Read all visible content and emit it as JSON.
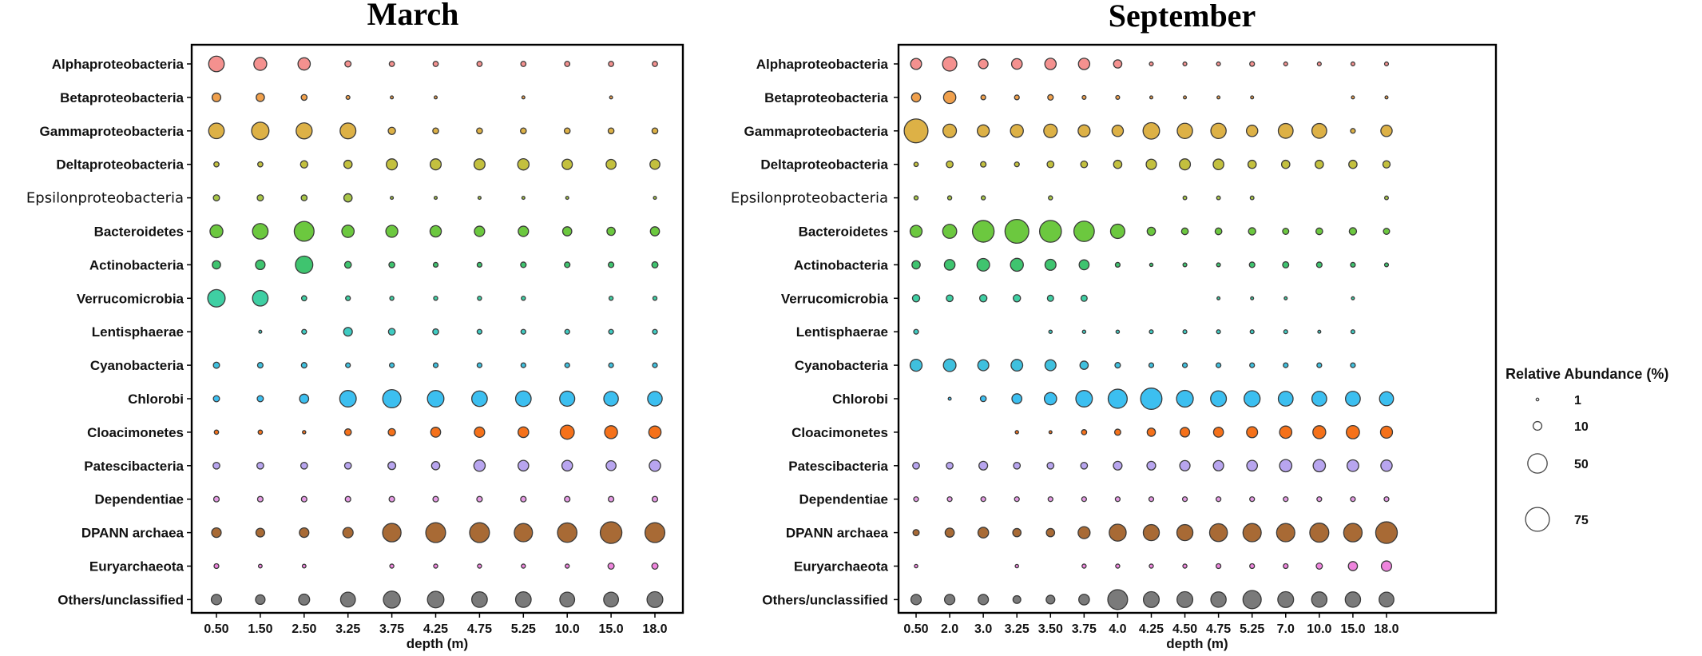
{
  "chart_data": {
    "type": "bubble",
    "taxa": [
      {
        "name": "Alphaproteobacteria",
        "color": "#f4918f"
      },
      {
        "name": "Betaproteobacteria",
        "color": "#f0a04c"
      },
      {
        "name": "Gammaproteobacteria",
        "color": "#ddb146"
      },
      {
        "name": "Deltaproteobacteria",
        "color": "#c3c03e"
      },
      {
        "name": "Epsilonproteobacteria",
        "color": "#a8c547"
      },
      {
        "name": "Bacteroidetes",
        "color": "#6cc83f"
      },
      {
        "name": "Actinobacteria",
        "color": "#3fc46f"
      },
      {
        "name": "Verrucomicrobia",
        "color": "#3fcfa3"
      },
      {
        "name": "Lentisphaerae",
        "color": "#3fcbc2"
      },
      {
        "name": "Cyanobacteria",
        "color": "#3fc0de"
      },
      {
        "name": "Chlorobi",
        "color": "#3cbff0"
      },
      {
        "name": "Cloacimonetes",
        "color": "#f5711a"
      },
      {
        "name": "Patescibacteria",
        "color": "#b8a5ef"
      },
      {
        "name": "Dependentiae",
        "color": "#e59be4"
      },
      {
        "name": "DPANN archaea",
        "color": "#a86a35"
      },
      {
        "name": "Euryarchaeota",
        "color": "#ee84dd"
      },
      {
        "name": "Others/unclassified",
        "color": "#7a7a7a"
      }
    ],
    "x_label": "depth (m)",
    "legend": {
      "title": "Relative Abundance (%)",
      "sizes": [
        1,
        10,
        50,
        75
      ],
      "labels": [
        "1",
        "10",
        "50",
        "75"
      ]
    },
    "panels": [
      {
        "title": "March",
        "depths": [
          "0.50",
          "1.50",
          "2.50",
          "3.25",
          "3.75",
          "4.25",
          "4.75",
          "5.25",
          "10.0",
          "15.0",
          "18.0"
        ],
        "values": [
          [
            32,
            22,
            20,
            5,
            3.5,
            3.5,
            3.5,
            3.5,
            3.5,
            3.5,
            3.5
          ],
          [
            10,
            9,
            4.5,
            2,
            1.2,
            1.2,
            0,
            1.2,
            0,
            1.2,
            0
          ],
          [
            32,
            40,
            34,
            33,
            7,
            4.5,
            4.5,
            4.5,
            4.5,
            4.5,
            4.5
          ],
          [
            3.5,
            3.5,
            7,
            9,
            16,
            16,
            16,
            17,
            14,
            13,
            13
          ],
          [
            5,
            5,
            4.5,
            9,
            1.2,
            1.2,
            1.2,
            1.2,
            1.2,
            0,
            1.2
          ],
          [
            22,
            32,
            52,
            20,
            19,
            17,
            14,
            14,
            11,
            9,
            11
          ],
          [
            9,
            12,
            40,
            6,
            4.5,
            3,
            3,
            4,
            4,
            4,
            5
          ],
          [
            40,
            32,
            3.5,
            3,
            2.2,
            2.2,
            2.2,
            2.2,
            0,
            2.2,
            2.2
          ],
          [
            0,
            1.2,
            3,
            10,
            6,
            4.5,
            3,
            3,
            3,
            3,
            3
          ],
          [
            5,
            4,
            4,
            3,
            3,
            3,
            3,
            3,
            3,
            3,
            3
          ],
          [
            5,
            5,
            11,
            36,
            44,
            36,
            32,
            32,
            30,
            28,
            28
          ],
          [
            2.5,
            2.5,
            1.5,
            6,
            7,
            13,
            14,
            15,
            26,
            22,
            20
          ],
          [
            6,
            6,
            6,
            6,
            8,
            9,
            17,
            15,
            15,
            13,
            17
          ],
          [
            4,
            4,
            4,
            4,
            4,
            4,
            4,
            4,
            4,
            4,
            4
          ],
          [
            12,
            10,
            12,
            14,
            45,
            52,
            52,
            44,
            50,
            62,
            52
          ],
          [
            3,
            1.8,
            1.8,
            0,
            2.2,
            2.2,
            2.2,
            2.2,
            2.2,
            5,
            5
          ],
          [
            14,
            12,
            16,
            29,
            38,
            36,
            32,
            32,
            29,
            29,
            33
          ]
        ]
      },
      {
        "title": "September",
        "depths": [
          "0.50",
          "2.0",
          "3.0",
          "3.25",
          "3.50",
          "3.75",
          "4.0",
          "4.25",
          "4.50",
          "4.75",
          "5.25",
          "7.0",
          "10.0",
          "15.0",
          "18.0"
        ],
        "values": [
          [
            16,
            27,
            12,
            15,
            17,
            17,
            9,
            2,
            2,
            2,
            3,
            2,
            2,
            2,
            2
          ],
          [
            11,
            20,
            3,
            3,
            4,
            2,
            2,
            1.2,
            1.2,
            1.2,
            1.2,
            0,
            0,
            1.2,
            1.2
          ],
          [
            75,
            24,
            19,
            22,
            24,
            19,
            17,
            36,
            31,
            31,
            17,
            29,
            29,
            3,
            17
          ],
          [
            2.5,
            6,
            4,
            3,
            6,
            6,
            9,
            14,
            16,
            15,
            9,
            9,
            9,
            9,
            7
          ],
          [
            2.2,
            2.2,
            2.2,
            0,
            2.2,
            0,
            0,
            0,
            1.8,
            1.8,
            1.8,
            0,
            0,
            0,
            1.8
          ],
          [
            19,
            26,
            62,
            75,
            63,
            55,
            27,
            9,
            6,
            6,
            7,
            5,
            6,
            7,
            5
          ],
          [
            9,
            15,
            21,
            22,
            16,
            13,
            3,
            1.5,
            2,
            2,
            4,
            5,
            4,
            3,
            2
          ],
          [
            7,
            6,
            7,
            7,
            5,
            5,
            0,
            0,
            0,
            1.2,
            1.2,
            1.2,
            0,
            1.2,
            0
          ],
          [
            3,
            0,
            0,
            0,
            1.5,
            1.5,
            1.5,
            2,
            2,
            2,
            2,
            2,
            1.2,
            2,
            0
          ],
          [
            19,
            21,
            16,
            18,
            16,
            9,
            4,
            3,
            3,
            3,
            3,
            3,
            3,
            3,
            0
          ],
          [
            0,
            1.2,
            4.5,
            13,
            20,
            36,
            48,
            60,
            37,
            33,
            34,
            29,
            29,
            29,
            26
          ],
          [
            0,
            0,
            0,
            1.5,
            1.2,
            3.5,
            5,
            9,
            12,
            13,
            16,
            20,
            22,
            23,
            19
          ],
          [
            6,
            6,
            10,
            6,
            6,
            6,
            10,
            10,
            14,
            14,
            15,
            20,
            20,
            18,
            17
          ],
          [
            3,
            3,
            3,
            3,
            3,
            3,
            3,
            3,
            3,
            3,
            3,
            3,
            3,
            3,
            3
          ],
          [
            5,
            11,
            15,
            9,
            9,
            19,
            38,
            34,
            34,
            42,
            44,
            44,
            48,
            45,
            62
          ],
          [
            1.5,
            0,
            0,
            1.5,
            0,
            2.2,
            2.2,
            2.2,
            2.2,
            3,
            3,
            3,
            5,
            11,
            14
          ],
          [
            14,
            14,
            14,
            8,
            10,
            15,
            52,
            33,
            33,
            31,
            44,
            33,
            31,
            31,
            29
          ]
        ]
      }
    ]
  }
}
